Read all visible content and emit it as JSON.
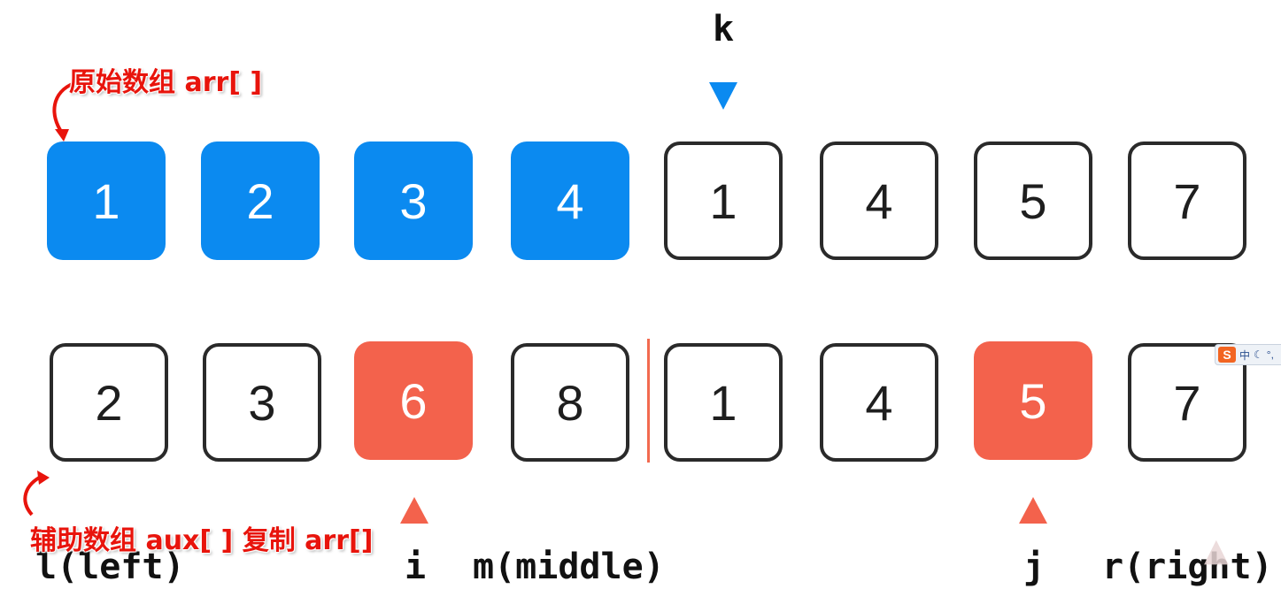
{
  "pointers": {
    "k": "k",
    "i": "i",
    "m": "m(middle)",
    "j": "j",
    "l": "l(left)",
    "r": "r(right)"
  },
  "annotations": {
    "original_array": "原始数组 arr[ ]",
    "aux_array": "辅助数组 aux[ ]  复制 arr[]"
  },
  "arr": [
    {
      "value": "1",
      "style": "blue"
    },
    {
      "value": "2",
      "style": "blue"
    },
    {
      "value": "3",
      "style": "blue"
    },
    {
      "value": "4",
      "style": "blue"
    },
    {
      "value": "1",
      "style": "plain"
    },
    {
      "value": "4",
      "style": "plain"
    },
    {
      "value": "5",
      "style": "plain"
    },
    {
      "value": "7",
      "style": "plain"
    }
  ],
  "aux": [
    {
      "value": "2",
      "style": "plain"
    },
    {
      "value": "3",
      "style": "plain"
    },
    {
      "value": "6",
      "style": "red"
    },
    {
      "value": "8",
      "style": "plain"
    },
    {
      "value": "1",
      "style": "plain"
    },
    {
      "value": "4",
      "style": "plain"
    },
    {
      "value": "5",
      "style": "red"
    },
    {
      "value": "7",
      "style": "plain"
    }
  ],
  "colors": {
    "blue": "#0b8af0",
    "red": "#f3624c",
    "annotation": "#e8140c",
    "pointer_k": "#0b8af0",
    "pointer_ij": "#f3624c"
  },
  "ime_toolbar": {
    "logo": "S",
    "mode": "中"
  }
}
